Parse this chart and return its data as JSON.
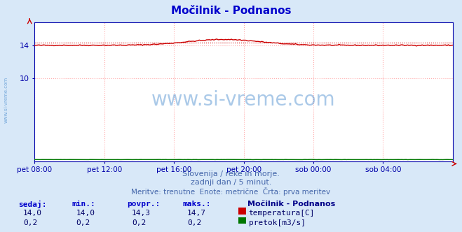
{
  "title": "Močilnik - Podnanos",
  "bg_color": "#d8e8f8",
  "plot_bg_color": "#ffffff",
  "grid_color": "#ffaaaa",
  "axis_color": "#0000aa",
  "title_color": "#0000cc",
  "xlabel_ticks": [
    "pet 08:00",
    "pet 12:00",
    "pet 16:00",
    "pet 20:00",
    "sob 00:00",
    "sob 04:00"
  ],
  "tick_positions_norm": [
    0.0,
    0.1667,
    0.3333,
    0.5,
    0.6667,
    0.8333
  ],
  "ylim": [
    0,
    16.8
  ],
  "yticks": [
    10,
    14
  ],
  "temp_color": "#cc0000",
  "flow_color": "#007700",
  "avg_line_color": "#cc0000",
  "watermark_text": "www.si-vreme.com",
  "watermark_color": "#4488cc",
  "subtitle1": "Slovenija / reke in morje.",
  "subtitle2": "zadnji dan / 5 minut.",
  "subtitle3": "Meritve: trenutne  Enote: metrične  Črta: prva meritev",
  "subtitle_color": "#4466aa",
  "legend_title": "Močilnik - Podnanos",
  "legend_title_color": "#000088",
  "legend_color": "#000066",
  "stats_label_color": "#0000cc",
  "stats_value_color": "#000066",
  "stats_headers": [
    "sedaj:",
    "min.:",
    "povpr.:",
    "maks.:"
  ],
  "temp_stats": [
    "14,0",
    "14,0",
    "14,3",
    "14,7"
  ],
  "flow_stats": [
    "0,2",
    "0,2",
    "0,2",
    "0,2"
  ],
  "temp_label": "temperatura[C]",
  "flow_label": "pretok[m3/s]",
  "avg_temp": 14.3,
  "figsize": [
    6.59,
    3.32
  ],
  "dpi": 100
}
